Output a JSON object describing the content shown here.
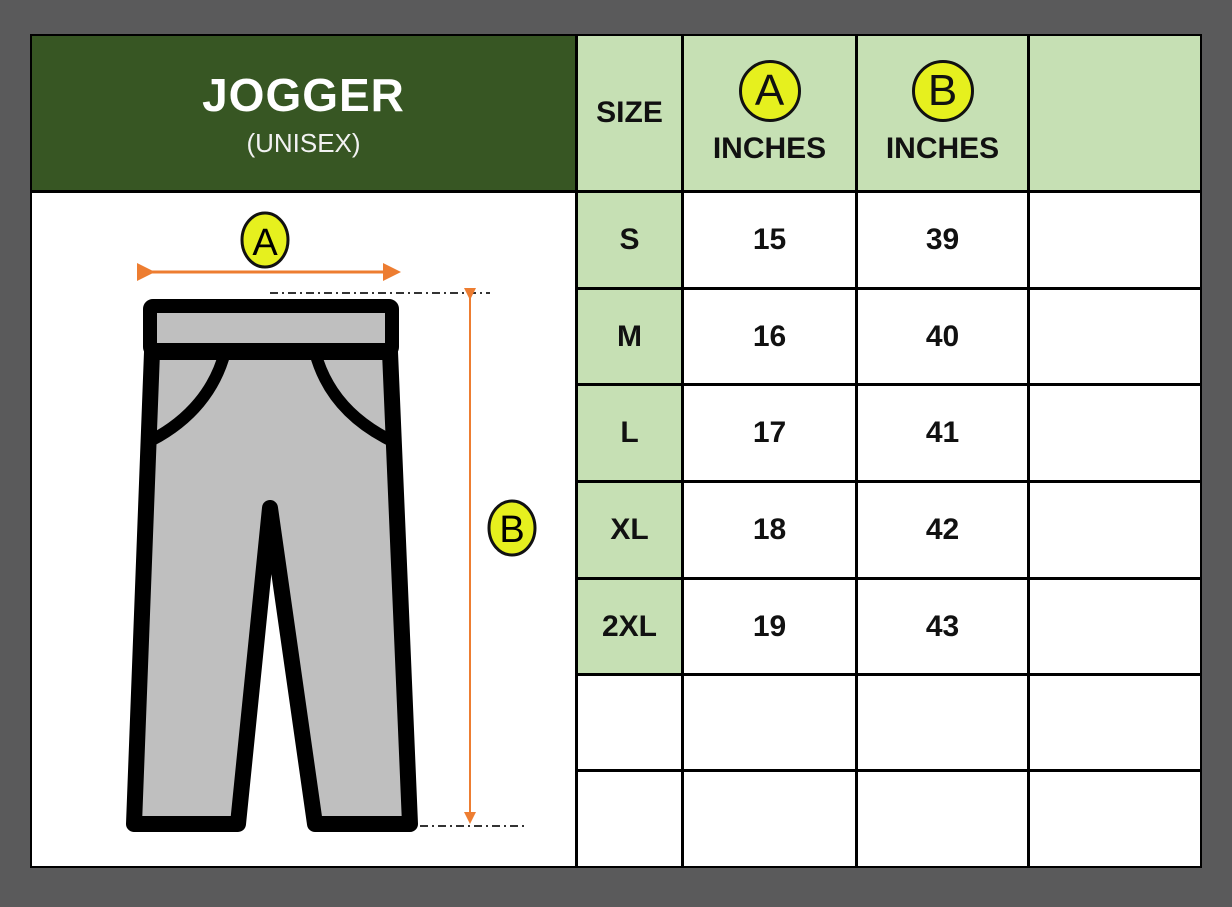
{
  "title": "JOGGER",
  "subtitle": "(UNISEX)",
  "header": {
    "size": "SIZE",
    "col_a_badge": "A",
    "col_a_unit": "INCHES",
    "col_b_badge": "B",
    "col_b_unit": "INCHES"
  },
  "diagram": {
    "label_a": "A",
    "label_b": "B"
  },
  "rows": [
    {
      "size": "S",
      "a": "15",
      "b": "39"
    },
    {
      "size": "M",
      "a": "16",
      "b": "40"
    },
    {
      "size": "L",
      "a": "17",
      "b": "41"
    },
    {
      "size": "XL",
      "a": "18",
      "b": "42"
    },
    {
      "size": "2XL",
      "a": "19",
      "b": "43"
    }
  ],
  "colors": {
    "header_dark_green": "#375623",
    "header_light_green": "#c6e0b4",
    "badge_yellow": "#e6f01e",
    "arrow_orange": "#ed7d31",
    "pants_gray": "#bfbfbf"
  }
}
